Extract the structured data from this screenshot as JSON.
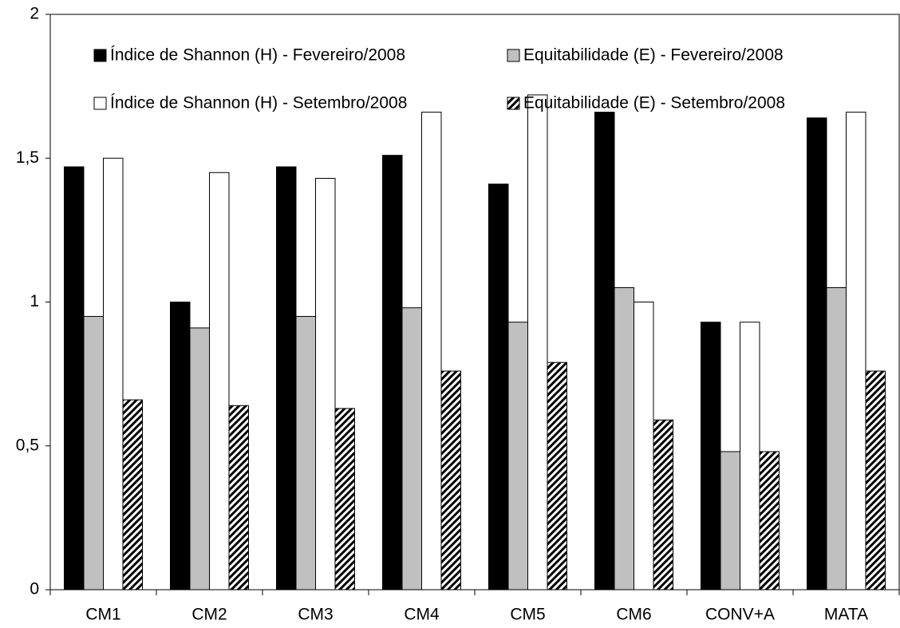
{
  "chart_data": {
    "type": "bar",
    "categories": [
      "CM1",
      "CM2",
      "CM3",
      "CM4",
      "CM5",
      "CM6",
      "CONV+A",
      "MATA"
    ],
    "series": [
      {
        "name": "Índice de Shannon (H) - Fevereiro/2008",
        "color": "#000000",
        "values": [
          1.47,
          1.0,
          1.47,
          1.51,
          1.41,
          1.66,
          0.93,
          1.64
        ]
      },
      {
        "name": "Equitabilidade (E) - Fevereiro/2008",
        "color": "#c0c0c0",
        "values": [
          0.95,
          0.91,
          0.95,
          0.98,
          0.93,
          1.05,
          0.48,
          1.05
        ]
      },
      {
        "name": "Índice de Shannon (H) - Setembro/2008",
        "color": "#ffffff",
        "values": [
          1.5,
          1.45,
          1.43,
          1.66,
          1.72,
          1.0,
          0.93,
          1.66
        ]
      },
      {
        "name": "Equitabilidade (E) - Setembro/2008",
        "color": "#000000",
        "hatch": true,
        "values": [
          0.66,
          0.64,
          0.63,
          0.76,
          0.79,
          0.59,
          0.48,
          0.76
        ]
      }
    ],
    "ylim": [
      0,
      2
    ],
    "yticks": [
      0,
      {
        "value": 0.5,
        "label": "0,5"
      },
      1,
      {
        "value": 1.5,
        "label": "1,5"
      },
      2
    ]
  }
}
